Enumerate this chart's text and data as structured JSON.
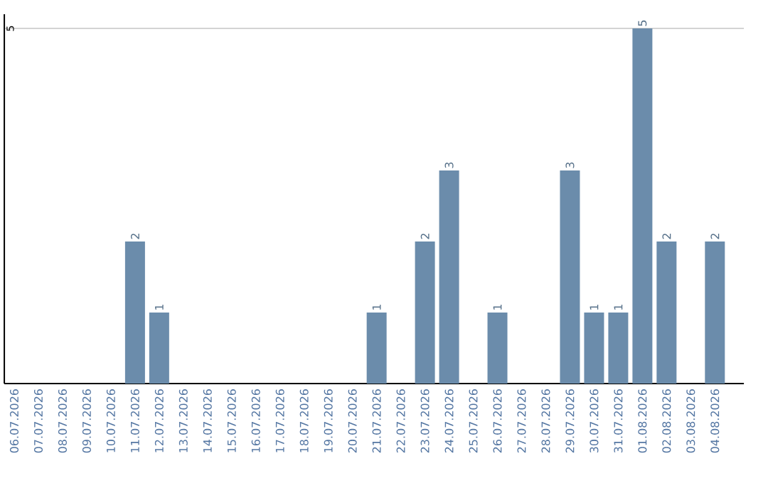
{
  "chart_data": {
    "type": "bar",
    "categories": [
      "06.07.2026",
      "07.07.2026",
      "08.07.2026",
      "09.07.2026",
      "10.07.2026",
      "11.07.2026",
      "12.07.2026",
      "13.07.2026",
      "14.07.2026",
      "15.07.2026",
      "16.07.2026",
      "17.07.2026",
      "18.07.2026",
      "19.07.2026",
      "20.07.2026",
      "21.07.2026",
      "22.07.2026",
      "23.07.2026",
      "24.07.2026",
      "25.07.2026",
      "26.07.2026",
      "27.07.2026",
      "28.07.2026",
      "29.07.2026",
      "30.07.2026",
      "31.07.2026",
      "01.08.2026",
      "02.08.2026",
      "03.08.2026",
      "04.08.2026"
    ],
    "values": [
      0,
      0,
      0,
      0,
      0,
      2,
      1,
      0,
      0,
      0,
      0,
      0,
      0,
      0,
      0,
      1,
      0,
      2,
      3,
      0,
      1,
      0,
      0,
      3,
      1,
      1,
      5,
      2,
      0,
      2
    ],
    "value_labels": [
      null,
      null,
      null,
      null,
      null,
      "2",
      "1",
      null,
      null,
      null,
      null,
      null,
      null,
      null,
      null,
      "1",
      null,
      "2",
      "3",
      null,
      "1",
      null,
      null,
      "3",
      "1",
      "1",
      "5",
      "2",
      null,
      "2"
    ],
    "color": "#6b8cab",
    "ylim": [
      0,
      5.2
    ],
    "yticks": [
      5
    ],
    "grid": "y"
  }
}
